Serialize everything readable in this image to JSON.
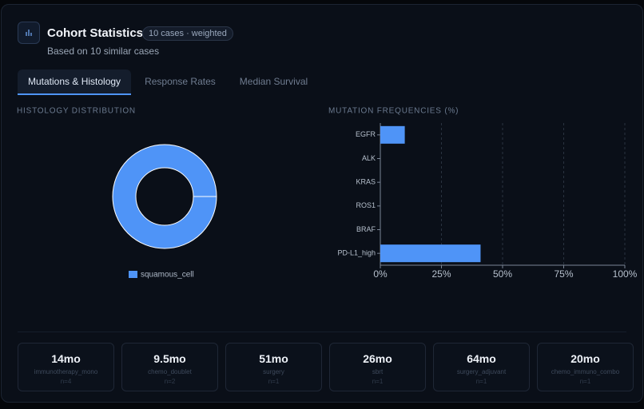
{
  "header": {
    "title": "Cohort Statistics",
    "badge": "10 cases · weighted",
    "subtitle": "Based on 10 similar cases"
  },
  "tabs": [
    "Mutations & Histology",
    "Response Rates",
    "Median Survival"
  ],
  "chart_data": [
    {
      "type": "pie",
      "donut": true,
      "title": "HISTOLOGY DISTRIBUTION",
      "categories": [
        "squamous_cell"
      ],
      "values": [
        100
      ],
      "colors": [
        "#4f94f7"
      ]
    },
    {
      "type": "bar",
      "orientation": "horizontal",
      "title": "MUTATION FREQUENCIES (%)",
      "categories": [
        "EGFR",
        "ALK",
        "KRAS",
        "ROS1",
        "BRAF",
        "PD-L1_high"
      ],
      "values": [
        10,
        0,
        0,
        0,
        0,
        41
      ],
      "color": "#4f94f7",
      "xlim": [
        0,
        100
      ],
      "xticks": [
        {
          "value": 0,
          "label": "0%"
        },
        {
          "value": 25,
          "label": "25%"
        },
        {
          "value": 50,
          "label": "50%"
        },
        {
          "value": 75,
          "label": "75%"
        },
        {
          "value": 100,
          "label": "100%"
        }
      ],
      "grid": true
    }
  ],
  "survival_cards": [
    {
      "value": "14mo",
      "label": "immunotherapy_mono",
      "n": "n=4"
    },
    {
      "value": "9.5mo",
      "label": "chemo_doublet",
      "n": "n=2"
    },
    {
      "value": "51mo",
      "label": "surgery",
      "n": "n=1"
    },
    {
      "value": "26mo",
      "label": "sbrt",
      "n": "n=1"
    },
    {
      "value": "64mo",
      "label": "surgery_adjuvant",
      "n": "n=1"
    },
    {
      "value": "20mo",
      "label": "chemo_immuno_combo",
      "n": "n=1"
    }
  ]
}
